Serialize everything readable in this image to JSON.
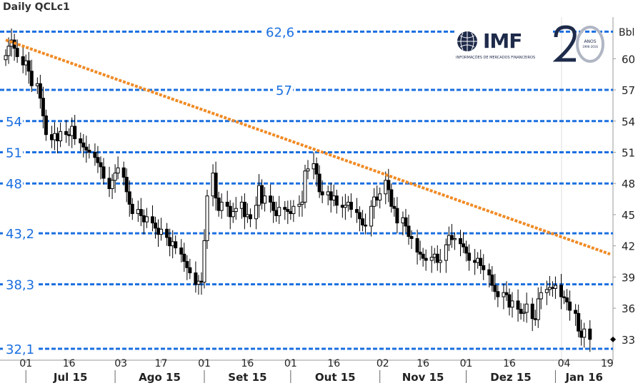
{
  "chart_data": {
    "type": "candlestick",
    "title": "Daily QCLc1",
    "ylabel": "Bbl",
    "ylim": [
      31,
      64
    ],
    "y_ticks": [
      60,
      57,
      54,
      51,
      48,
      45,
      42,
      39,
      36,
      33
    ],
    "x_ticks": [
      "01",
      "16",
      "03",
      "17",
      "01",
      "16",
      "01",
      "16",
      "02",
      "16",
      "01",
      "16",
      "04",
      "19"
    ],
    "month_labels": [
      "Jul 15",
      "Ago 15",
      "Set 15",
      "Out 15",
      "Nov 15",
      "Dez 15",
      "Jan 16"
    ],
    "levels": [
      {
        "value": 62.6,
        "label": "62,6"
      },
      {
        "value": 57,
        "label": "57"
      },
      {
        "value": 54,
        "label": "54"
      },
      {
        "value": 51,
        "label": "51"
      },
      {
        "value": 48,
        "label": "48"
      },
      {
        "value": 43.2,
        "label": "43,2"
      },
      {
        "value": 38.3,
        "label": "38,3"
      },
      {
        "value": 32.1,
        "label": "32,1"
      }
    ],
    "trendline": {
      "start": [
        "2015-06-24",
        61.8
      ],
      "end": [
        "2016-01-20",
        41.2
      ],
      "color": "#f08a24"
    },
    "last_price": 33.0,
    "candles": [
      60.3,
      61.2,
      61.8,
      61.0,
      60.2,
      59.4,
      59.8,
      58.8,
      57.4,
      57.6,
      56.2,
      54.5,
      52.7,
      52.2,
      52.8,
      52.1,
      53.0,
      52.7,
      52.6,
      53.5,
      52.3,
      51.9,
      51.5,
      51.2,
      51.0,
      50.5,
      50.0,
      49.6,
      48.5,
      47.5,
      48.3,
      49.0,
      49.5,
      48.6,
      47.2,
      46.0,
      45.1,
      45.5,
      44.9,
      44.3,
      44.8,
      44.2,
      43.7,
      43.1,
      43.6,
      42.8,
      42.0,
      42.4,
      41.8,
      41.2,
      40.5,
      39.9,
      39.4,
      38.3,
      38.6,
      38.5,
      42.5,
      46.8,
      49.0,
      46.6,
      45.4,
      46.2,
      45.8,
      44.8,
      45.3,
      45.6,
      46.2,
      44.8,
      45.0,
      44.6,
      45.9,
      47.8,
      46.1,
      46.8,
      46.2,
      45.4,
      44.9,
      45.7,
      45.5,
      45.3,
      45.1,
      45.8,
      46.0,
      46.2,
      49.2,
      49.4,
      49.9,
      48.9,
      47.2,
      46.9,
      47.2,
      46.4,
      46.8,
      45.9,
      45.7,
      45.9,
      46.2,
      45.5,
      45.2,
      44.6,
      44.0,
      43.9,
      45.8,
      46.7,
      46.4,
      47.0,
      48.3,
      47.4,
      45.8,
      45.6,
      44.2,
      44.7,
      43.9,
      42.9,
      42.7,
      41.4,
      41.2,
      40.8,
      40.6,
      40.9,
      41.2,
      40.4,
      40.6,
      42.1,
      43.0,
      42.6,
      42.7,
      42.2,
      41.9,
      41.3,
      40.6,
      40.4,
      40.8,
      40.1,
      39.7,
      39.2,
      38.2,
      37.6,
      37.1,
      37.5,
      37.3,
      36.1,
      36.7,
      35.9,
      35.5,
      35.6,
      36.4,
      35.0,
      34.9,
      36.9,
      37.5,
      37.8,
      38.0,
      37.9,
      38.2,
      37.1,
      37.0,
      36.6,
      35.8,
      35.5,
      33.8,
      33.2,
      34.0,
      33.0
    ],
    "candle_dates": [
      "2015-06-24",
      "2016-01-13"
    ]
  }
}
